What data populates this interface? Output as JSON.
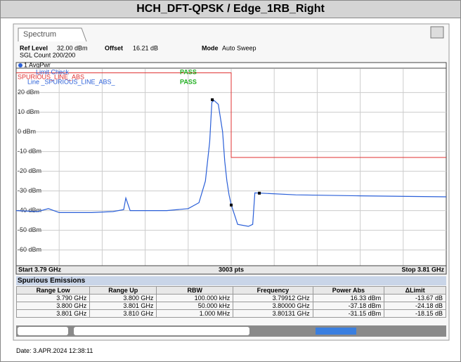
{
  "title": "HCH_DFT-QPSK / Edge_1RB_Right",
  "tab": "Spectrum",
  "settings": {
    "ref_level_label": "Ref Level",
    "ref_level": "32.00 dBm",
    "offset_label": "Offset",
    "offset": "16.21 dB",
    "mode_label": "Mode",
    "mode": "Auto Sweep",
    "count": "SGL Count 200/200"
  },
  "chart_data": {
    "type": "line",
    "trace_label": "1 AvgPwr",
    "limit_check": "Limit Check",
    "limit_pass": "PASS",
    "line_label": "Line _SPURIOUS_LINE_ABS_",
    "line_pass": "PASS",
    "limit_name": "SPURIOUS_LINE_ABS",
    "xlim": [
      3.79,
      3.81
    ],
    "ylim": [
      -68,
      32
    ],
    "yticks": [
      {
        "value": 20,
        "label": "20 dBm"
      },
      {
        "value": 10,
        "label": "10 dBm"
      },
      {
        "value": 0,
        "label": "0 dBm"
      },
      {
        "value": -10,
        "label": "-10 dBm"
      },
      {
        "value": -20,
        "label": "-20 dBm"
      },
      {
        "value": -30,
        "label": "-30 dBm"
      },
      {
        "value": -40,
        "label": "-40 dBm"
      },
      {
        "value": -50,
        "label": "-50 dBm"
      },
      {
        "value": -60,
        "label": "-60 dBm"
      }
    ],
    "x": [
      3.79,
      3.791,
      3.7915,
      3.792,
      3.7935,
      3.7945,
      3.795,
      3.7951,
      3.7953,
      3.797,
      3.798,
      3.7985,
      3.7988,
      3.799,
      3.7991,
      3.7992,
      3.7994,
      3.7996,
      3.7997,
      3.7998,
      3.7999,
      3.8,
      3.8003,
      3.8008,
      3.801,
      3.8011,
      3.803,
      3.806,
      3.81
    ],
    "series": [
      {
        "color": "#2a5fd8",
        "values": [
          -40,
          -40.5,
          -39,
          -41,
          -41,
          -40.5,
          -39.5,
          -33.6,
          -40,
          -40,
          -39,
          -36,
          -25,
          -5,
          15,
          16,
          14,
          0,
          -15,
          -25,
          -32,
          -37,
          -47,
          -48,
          -47,
          -31,
          -32,
          -32.5,
          -33
        ]
      }
    ],
    "limit": {
      "color": "#e03030",
      "x": [
        3.79,
        3.8,
        3.8,
        3.81
      ],
      "values": [
        30,
        30,
        -13,
        -13
      ]
    },
    "markers": {
      "x": [
        3.79912,
        3.8,
        3.80131
      ],
      "values": [
        16.33,
        -37.18,
        -31.15
      ]
    },
    "start": "Start 3.79 GHz",
    "points": "3003 pts",
    "stop": "Stop 3.81 GHz"
  },
  "table": {
    "title": "Spurious Emissions",
    "header": [
      "Range Low",
      "Range Up",
      "RBW",
      "Frequency",
      "Power Abs",
      "ΔLimit"
    ],
    "rows": [
      [
        "3.790 GHz",
        "3.800 GHz",
        "100.000 kHz",
        "3.79912 GHz",
        "16.33 dBm",
        "-13.67 dB"
      ],
      [
        "3.800 GHz",
        "3.801 GHz",
        "50.000 kHz",
        "3.80000 GHz",
        "-37.18 dBm",
        "-24.18 dB"
      ],
      [
        "3.801 GHz",
        "3.810 GHz",
        "1.000 MHz",
        "3.80131 GHz",
        "-31.15 dBm",
        "-18.15 dB"
      ]
    ]
  },
  "date": "Date: 3.APR.2024  12:38:11"
}
